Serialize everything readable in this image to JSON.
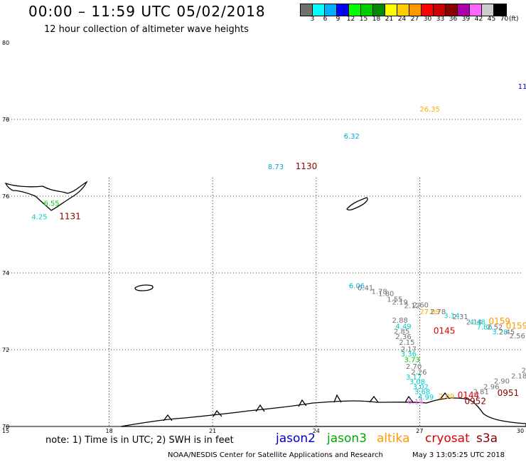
{
  "header": {
    "title": "00:00 – 11:59 UTC 05/02/2018",
    "subtitle": "12 hour collection of altimeter wave heights"
  },
  "colorbar": {
    "colors": [
      "#707070",
      "#00ffff",
      "#00b0ff",
      "#0000ff",
      "#00ff00",
      "#00cc00",
      "#008800",
      "#ffff00",
      "#ffcc00",
      "#ff9900",
      "#ff0000",
      "#cc0000",
      "#880000",
      "#aa00aa",
      "#ff66ff",
      "#cccccc",
      "#000000"
    ],
    "labels": [
      "3",
      "6",
      "9",
      "12",
      "15",
      "18",
      "21",
      "24",
      "27",
      "30",
      "33",
      "36",
      "39",
      "42",
      "45",
      "70"
    ],
    "unit": "(ft)"
  },
  "axes": {
    "y_ticks": [
      "80",
      "78",
      "76",
      "74",
      "72",
      "70"
    ],
    "x_ticks": [
      "15",
      "18",
      "21",
      "24",
      "27",
      "30"
    ]
  },
  "notes": {
    "text": "note:  1) Time is in UTC;  2) SWH is in feet"
  },
  "satellites": [
    {
      "name": "jason2",
      "color": "#0000cc"
    },
    {
      "name": "jason3",
      "color": "#00aa00"
    },
    {
      "name": "altika",
      "color": "#ff9900"
    },
    {
      "name": "cryosat",
      "color": "#dd0000"
    },
    {
      "name": "s3a",
      "color": "#880000"
    }
  ],
  "footer": {
    "center": "NOAA/NESDIS Center for Satellite Applications and Research",
    "timestamp": "May  3 13:05:25 UTC 2018"
  },
  "map_labels": [
    {
      "text": "11",
      "color": "#0000cc",
      "lon": 29.85,
      "lat": 78.8
    },
    {
      "text": "26.35",
      "color": "#ffaa00",
      "lon": 27.0,
      "lat": 78.2
    },
    {
      "text": "6.32",
      "color": "#00aacc",
      "lon": 24.8,
      "lat": 77.5
    },
    {
      "text": "8.73",
      "color": "#00aacc",
      "lon": 22.6,
      "lat": 76.7
    },
    {
      "text": "1130",
      "color": "#880000",
      "lon": 23.4,
      "lat": 76.7
    },
    {
      "text": "6.55",
      "color": "#00cc00",
      "lon": 16.1,
      "lat": 75.75
    },
    {
      "text": "4.25",
      "color": "#00cccc",
      "lon": 15.75,
      "lat": 75.4
    },
    {
      "text": "1131",
      "color": "#880000",
      "lon": 16.55,
      "lat": 75.4
    },
    {
      "text": "6.06",
      "color": "#00aacc",
      "lon": 24.95,
      "lat": 73.6
    },
    {
      "text": "0.41",
      "color": "#707070",
      "lon": 25.2,
      "lat": 73.55
    },
    {
      "text": "1.78",
      "color": "#707070",
      "lon": 25.6,
      "lat": 73.45
    },
    {
      "text": "1.80",
      "color": "#707070",
      "lon": 25.8,
      "lat": 73.4
    },
    {
      "text": "1.55",
      "color": "#707070",
      "lon": 26.05,
      "lat": 73.25
    },
    {
      "text": "2.19",
      "color": "#707070",
      "lon": 26.2,
      "lat": 73.18
    },
    {
      "text": "2.12",
      "color": "#707070",
      "lon": 26.55,
      "lat": 73.08
    },
    {
      "text": "2.60",
      "color": "#707070",
      "lon": 26.8,
      "lat": 73.1
    },
    {
      "text": "27.09",
      "color": "#ffaa00",
      "lon": 27.0,
      "lat": 72.93
    },
    {
      "text": "2.78",
      "color": "#707070",
      "lon": 27.3,
      "lat": 72.93
    },
    {
      "text": "3.14",
      "color": "#00cccc",
      "lon": 27.7,
      "lat": 72.82
    },
    {
      "text": "2.31",
      "color": "#707070",
      "lon": 27.95,
      "lat": 72.8
    },
    {
      "text": "2.88",
      "color": "#707070",
      "lon": 26.2,
      "lat": 72.7
    },
    {
      "text": "4.49",
      "color": "#00cccc",
      "lon": 26.3,
      "lat": 72.55
    },
    {
      "text": "2.14",
      "color": "#707070",
      "lon": 28.35,
      "lat": 72.66
    },
    {
      "text": "4.48",
      "color": "#00cccc",
      "lon": 28.45,
      "lat": 72.66
    },
    {
      "text": "0159",
      "color": "#ff9900",
      "lon": 29.0,
      "lat": 72.67
    },
    {
      "text": "7.86",
      "color": "#00cccc",
      "lon": 28.65,
      "lat": 72.53
    },
    {
      "text": "2.52",
      "color": "#707070",
      "lon": 28.95,
      "lat": 72.53
    },
    {
      "text": "0159",
      "color": "#ff9900",
      "lon": 29.5,
      "lat": 72.55
    },
    {
      "text": "3.28",
      "color": "#00cccc",
      "lon": 29.1,
      "lat": 72.4
    },
    {
      "text": "2.45",
      "color": "#707070",
      "lon": 29.3,
      "lat": 72.4
    },
    {
      "text": "2.56",
      "color": "#707070",
      "lon": 29.6,
      "lat": 72.3
    },
    {
      "text": "2.85",
      "color": "#707070",
      "lon": 26.25,
      "lat": 72.42
    },
    {
      "text": "0145",
      "color": "#dd0000",
      "lon": 27.4,
      "lat": 72.42
    },
    {
      "text": "2.36",
      "color": "#707070",
      "lon": 26.3,
      "lat": 72.28
    },
    {
      "text": "2.15",
      "color": "#707070",
      "lon": 26.4,
      "lat": 72.13
    },
    {
      "text": "2.17",
      "color": "#707070",
      "lon": 26.45,
      "lat": 71.95
    },
    {
      "text": "3.36",
      "color": "#00cccc",
      "lon": 26.45,
      "lat": 71.82
    },
    {
      "text": "3.73",
      "color": "#00cc00",
      "lon": 26.55,
      "lat": 71.68
    },
    {
      "text": "2.70",
      "color": "#707070",
      "lon": 26.6,
      "lat": 71.5
    },
    {
      "text": "2.26",
      "color": "#707070",
      "lon": 26.75,
      "lat": 71.35
    },
    {
      "text": "3.17",
      "color": "#00cccc",
      "lon": 26.6,
      "lat": 71.22
    },
    {
      "text": "3.08",
      "color": "#00cccc",
      "lon": 26.7,
      "lat": 71.1
    },
    {
      "text": "3.02",
      "color": "#00cccc",
      "lon": 26.8,
      "lat": 70.97
    },
    {
      "text": "3.68",
      "color": "#00cccc",
      "lon": 26.85,
      "lat": 70.84
    },
    {
      "text": "4.99",
      "color": "#00cccc",
      "lon": 26.95,
      "lat": 70.7
    },
    {
      "text": "2.18",
      "color": "#707070",
      "lon": 29.65,
      "lat": 71.25
    },
    {
      "text": "2.90",
      "color": "#707070",
      "lon": 29.15,
      "lat": 71.12
    },
    {
      "text": "2.96",
      "color": "#707070",
      "lon": 28.85,
      "lat": 70.97
    },
    {
      "text": "2.81",
      "color": "#707070",
      "lon": 28.55,
      "lat": 70.84
    },
    {
      "text": "2.09",
      "color": "#ffaa00",
      "lon": 27.55,
      "lat": 70.72
    },
    {
      "text": "0144",
      "color": "#dd0000",
      "lon": 28.1,
      "lat": 70.74
    },
    {
      "text": "0951",
      "color": "#880000",
      "lon": 29.25,
      "lat": 70.8
    },
    {
      "text": "6.14",
      "color": "#ff66ff",
      "lon": 26.65,
      "lat": 70.58
    },
    {
      "text": "0952",
      "color": "#880000",
      "lon": 28.3,
      "lat": 70.58
    },
    {
      "text": "2",
      "color": "#707070",
      "lon": 29.95,
      "lat": 71.4
    }
  ]
}
